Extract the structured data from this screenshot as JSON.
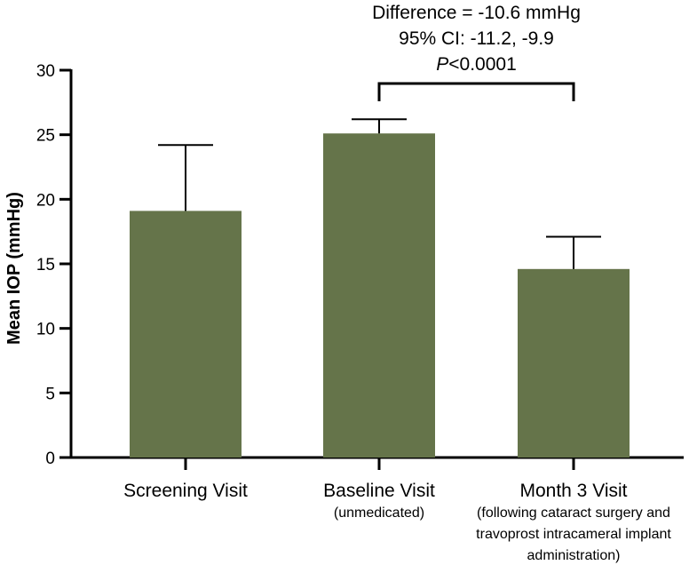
{
  "chart_data": {
    "type": "bar",
    "ylabel": "Mean IOP (mmHg)",
    "ylim": [
      0,
      30
    ],
    "yticks": [
      0,
      5,
      10,
      15,
      20,
      25,
      30
    ],
    "categories": [
      {
        "name": "Screening Visit",
        "sublines": []
      },
      {
        "name": "Baseline Visit",
        "sublines": [
          "(unmedicated)"
        ]
      },
      {
        "name": "Month 3 Visit",
        "sublines": [
          "(following cataract surgery and",
          "travoprost intracameral implant",
          "administration)"
        ]
      }
    ],
    "values": [
      19.1,
      25.1,
      14.6
    ],
    "error_upper": [
      24.2,
      26.2,
      17.1
    ],
    "annotation": {
      "comparison": [
        "Baseline Visit",
        "Month 3 Visit"
      ],
      "difference": "Difference = -10.6 mmHg",
      "ci": "95% CI: -11.2, -9.9",
      "p_prefix": "P",
      "p_value": "<0.0001"
    },
    "colors": {
      "bar": "#65744a",
      "axis": "#000000"
    }
  }
}
